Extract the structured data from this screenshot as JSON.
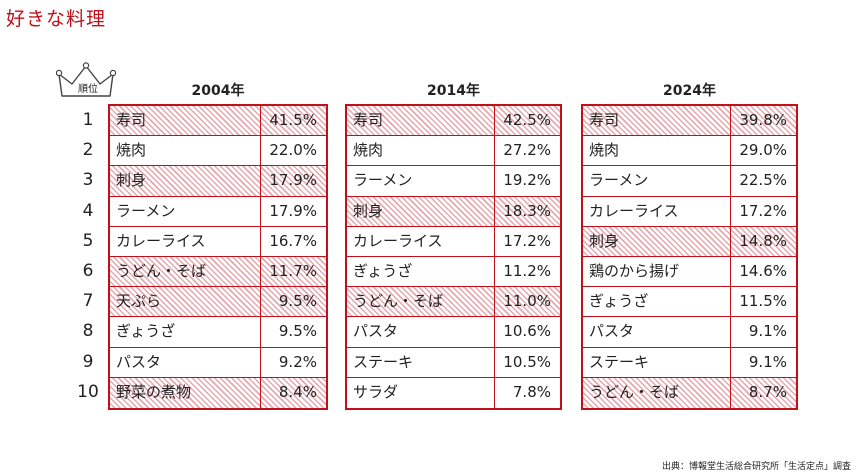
{
  "title": "好きな料理",
  "rank_label": "順位",
  "ranks": [
    "1",
    "2",
    "3",
    "4",
    "5",
    "6",
    "7",
    "8",
    "9",
    "10"
  ],
  "highlight_color": "#c0111b",
  "tables": [
    {
      "year": "2004年",
      "rows": [
        {
          "name": "寿司",
          "pct": "41.5%",
          "highlight": true
        },
        {
          "name": "焼肉",
          "pct": "22.0%",
          "highlight": false
        },
        {
          "name": "刺身",
          "pct": "17.9%",
          "highlight": true
        },
        {
          "name": "ラーメン",
          "pct": "17.9%",
          "highlight": false
        },
        {
          "name": "カレーライス",
          "pct": "16.7%",
          "highlight": false
        },
        {
          "name": "うどん・そば",
          "pct": "11.7%",
          "highlight": true
        },
        {
          "name": "天ぷら",
          "pct": "9.5%",
          "highlight": true
        },
        {
          "name": "ぎょうざ",
          "pct": "9.5%",
          "highlight": false
        },
        {
          "name": "パスタ",
          "pct": "9.2%",
          "highlight": false
        },
        {
          "name": "野菜の煮物",
          "pct": "8.4%",
          "highlight": true
        }
      ]
    },
    {
      "year": "2014年",
      "rows": [
        {
          "name": "寿司",
          "pct": "42.5%",
          "highlight": true
        },
        {
          "name": "焼肉",
          "pct": "27.2%",
          "highlight": false
        },
        {
          "name": "ラーメン",
          "pct": "19.2%",
          "highlight": false
        },
        {
          "name": "刺身",
          "pct": "18.3%",
          "highlight": true
        },
        {
          "name": "カレーライス",
          "pct": "17.2%",
          "highlight": false
        },
        {
          "name": "ぎょうざ",
          "pct": "11.2%",
          "highlight": false
        },
        {
          "name": "うどん・そば",
          "pct": "11.0%",
          "highlight": true
        },
        {
          "name": "パスタ",
          "pct": "10.6%",
          "highlight": false
        },
        {
          "name": "ステーキ",
          "pct": "10.5%",
          "highlight": false
        },
        {
          "name": "サラダ",
          "pct": "7.8%",
          "highlight": false
        }
      ]
    },
    {
      "year": "2024年",
      "rows": [
        {
          "name": "寿司",
          "pct": "39.8%",
          "highlight": true
        },
        {
          "name": "焼肉",
          "pct": "29.0%",
          "highlight": false
        },
        {
          "name": "ラーメン",
          "pct": "22.5%",
          "highlight": false
        },
        {
          "name": "カレーライス",
          "pct": "17.2%",
          "highlight": false
        },
        {
          "name": "刺身",
          "pct": "14.8%",
          "highlight": true
        },
        {
          "name": "鶏のから揚げ",
          "pct": "14.6%",
          "highlight": false
        },
        {
          "name": "ぎょうざ",
          "pct": "11.5%",
          "highlight": false
        },
        {
          "name": "パスタ",
          "pct": "9.1%",
          "highlight": false
        },
        {
          "name": "ステーキ",
          "pct": "9.1%",
          "highlight": false
        },
        {
          "name": "うどん・そば",
          "pct": "8.7%",
          "highlight": true
        }
      ]
    }
  ],
  "source": "出典：博報堂生活総合研究所「生活定点」調査"
}
